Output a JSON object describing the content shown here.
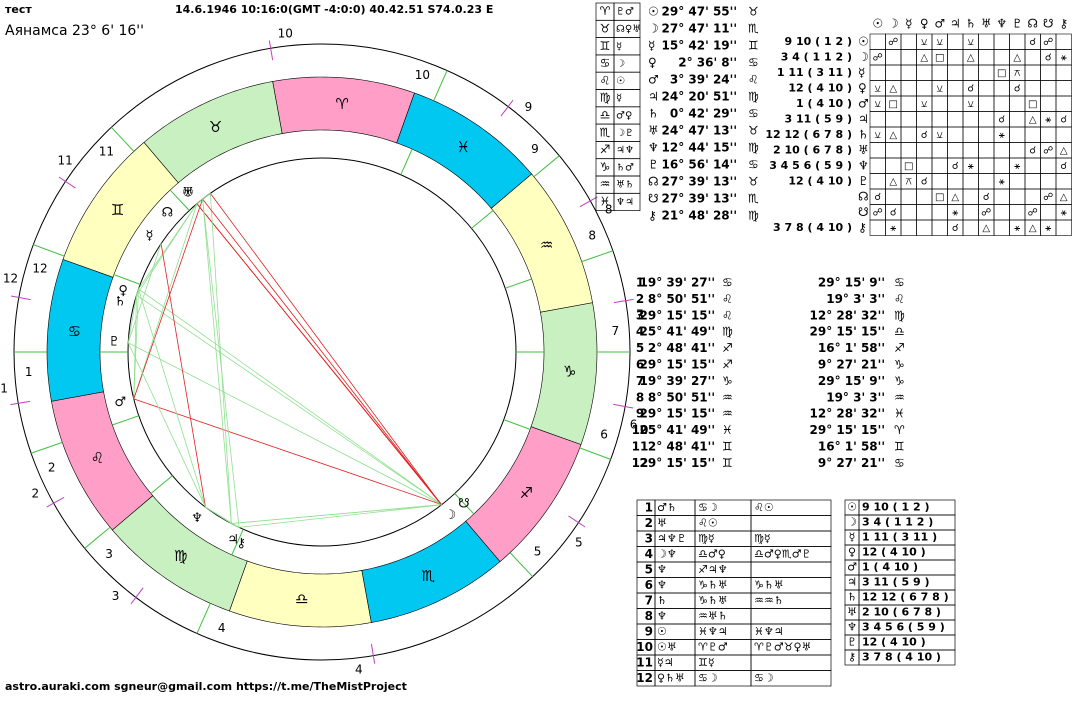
{
  "header": {
    "title": "тест",
    "info": "14.6.1946 10:16:0(GMT -4:0:0)  40.42.51 S74.0.23 E",
    "ayanamsa": "Аянамса 23°  6' 16''"
  },
  "wheel": {
    "signs": [
      "♈",
      "♉",
      "♊",
      "♋",
      "♌",
      "♍",
      "♎",
      "♏",
      "♐",
      "♑",
      "♒",
      "♓"
    ]
  },
  "rulers": [
    {
      "sign": "♈",
      "planets": "♇♂"
    },
    {
      "sign": "♉",
      "planets": "☊♀♅"
    },
    {
      "sign": "♊",
      "planets": "☿"
    },
    {
      "sign": "♋",
      "planets": "☽"
    },
    {
      "sign": "♌",
      "planets": "☉"
    },
    {
      "sign": "♍",
      "planets": "☿"
    },
    {
      "sign": "♎",
      "planets": "♂♀"
    },
    {
      "sign": "♏",
      "planets": "☽♇"
    },
    {
      "sign": "♐",
      "planets": "♃♆"
    },
    {
      "sign": "♑",
      "planets": "♄♂"
    },
    {
      "sign": "♒",
      "planets": "♅♄"
    },
    {
      "sign": "♓",
      "planets": "♆♃"
    }
  ],
  "planets": [
    {
      "glyph": "☉",
      "pos": "29° 47' 55''",
      "sign": "♉",
      "houses": "9 10 ( 1 2 )"
    },
    {
      "glyph": "☽",
      "pos": "27° 47' 11''",
      "sign": "♏",
      "houses": "3 4 ( 1 1 2 )"
    },
    {
      "glyph": "☿",
      "pos": "15° 42' 19''",
      "sign": "♊",
      "houses": "1 11 ( 3 11 )"
    },
    {
      "glyph": "♀",
      "pos": "2° 36' 8''",
      "sign": "♋",
      "houses": "12 ( 4 10 )"
    },
    {
      "glyph": "♂",
      "pos": "3° 39' 24''",
      "sign": "♌",
      "houses": "1 ( 4 10 )"
    },
    {
      "glyph": "♃",
      "pos": "24° 20' 51''",
      "sign": "♍",
      "houses": "3 11 ( 5 9 )"
    },
    {
      "glyph": "♄",
      "pos": "0° 42' 29''",
      "sign": "♋",
      "houses": "12 12 ( 6 7 8 )"
    },
    {
      "glyph": "♅",
      "pos": "24° 47' 13''",
      "sign": "♉",
      "houses": "2 10 ( 6 7 8 )"
    },
    {
      "glyph": "♆",
      "pos": "12° 44' 15''",
      "sign": "♍",
      "houses": "3 4 5 6 ( 5 9 )"
    },
    {
      "glyph": "♇",
      "pos": "16° 56' 14''",
      "sign": "♋",
      "houses": "12 ( 4 10 )"
    },
    {
      "glyph": "☊",
      "pos": "27° 39' 13''",
      "sign": "♉",
      "houses": null
    },
    {
      "glyph": "☋",
      "pos": "27° 39' 13''",
      "sign": "♏",
      "houses": null
    },
    {
      "glyph": "⚷",
      "pos": "21° 48' 28''",
      "sign": "♍",
      "houses": "3 7 8 ( 4 10 )"
    }
  ],
  "aspects": [
    [
      null,
      "☍",
      null,
      "⚺",
      "⚺",
      null,
      "⚺",
      null,
      null,
      null,
      "☌",
      "☍",
      null
    ],
    [
      "☍",
      null,
      null,
      "△",
      "□",
      null,
      "△",
      null,
      null,
      "△",
      null,
      "☌",
      "⚹"
    ],
    [
      null,
      null,
      null,
      null,
      null,
      null,
      null,
      null,
      "□",
      "⚻",
      null,
      null,
      null
    ],
    [
      "⚺",
      "△",
      null,
      null,
      "⚺",
      null,
      "☌",
      null,
      null,
      "☌",
      null,
      null,
      null
    ],
    [
      "⚺",
      "□",
      null,
      "⚺",
      null,
      null,
      "⚺",
      null,
      null,
      null,
      "□",
      null,
      null
    ],
    [
      null,
      null,
      null,
      null,
      null,
      null,
      null,
      null,
      "☌",
      null,
      "△",
      "⚹",
      "☌"
    ],
    [
      "⚺",
      "△",
      null,
      "☌",
      "⚺",
      null,
      null,
      null,
      "⚹",
      null,
      null,
      null,
      null
    ],
    [
      null,
      null,
      null,
      null,
      null,
      null,
      null,
      null,
      null,
      null,
      "☌",
      "☍",
      "△"
    ],
    [
      null,
      null,
      "□",
      null,
      null,
      "☌",
      "⚹",
      null,
      null,
      "⚹",
      null,
      null,
      "☌"
    ],
    [
      null,
      "△",
      "⚻",
      "☌",
      null,
      null,
      null,
      null,
      "⚹",
      null,
      null,
      null,
      null
    ],
    [
      "☌",
      null,
      null,
      null,
      "□",
      "△",
      null,
      "☌",
      null,
      null,
      null,
      "☍",
      "△"
    ],
    [
      "☍",
      "☌",
      null,
      null,
      null,
      "⚹",
      null,
      "☍",
      null,
      null,
      "☍",
      null,
      "⚹"
    ],
    [
      null,
      "⚹",
      null,
      null,
      null,
      "☌",
      null,
      "△",
      null,
      "⚹",
      "△",
      "⚹",
      null
    ]
  ],
  "houses": [
    {
      "num": "1",
      "cusp": "19° 39' 27''",
      "sign": "♋",
      "cusp2": "29° 15' 9''",
      "sign2": "♋"
    },
    {
      "num": "2",
      "cusp": "8° 50' 51''",
      "sign": "♌",
      "cusp2": "19° 3' 3''",
      "sign2": "♌"
    },
    {
      "num": "3",
      "cusp": "29° 15' 15''",
      "sign": "♌",
      "cusp2": "12° 28' 32''",
      "sign2": "♍"
    },
    {
      "num": "4",
      "cusp": "25° 41' 49''",
      "sign": "♍",
      "cusp2": "29° 15' 15''",
      "sign2": "♎"
    },
    {
      "num": "5",
      "cusp": "2° 48' 41''",
      "sign": "♐",
      "cusp2": "16° 1' 58''",
      "sign2": "♐"
    },
    {
      "num": "6",
      "cusp": "29° 15' 15''",
      "sign": "♐",
      "cusp2": "9° 27' 21''",
      "sign2": "♑"
    },
    {
      "num": "7",
      "cusp": "19° 39' 27''",
      "sign": "♑",
      "cusp2": "29° 15' 9''",
      "sign2": "♑"
    },
    {
      "num": "8",
      "cusp": "8° 50' 51''",
      "sign": "♒",
      "cusp2": "19° 3' 3''",
      "sign2": "♒"
    },
    {
      "num": "9",
      "cusp": "29° 15' 15''",
      "sign": "♒",
      "cusp2": "12° 28' 32''",
      "sign2": "♓"
    },
    {
      "num": "10",
      "cusp": "25° 41' 49''",
      "sign": "♓",
      "cusp2": "29° 15' 15''",
      "sign2": "♈"
    },
    {
      "num": "11",
      "cusp": "2° 48' 41''",
      "sign": "♊",
      "cusp2": "16° 1' 58''",
      "sign2": "♊"
    },
    {
      "num": "12",
      "cusp": "29° 15' 15''",
      "sign": "♊",
      "cusp2": "9° 27' 21''",
      "sign2": "♋"
    }
  ],
  "house_occupants": [
    {
      "num": "1",
      "a": "♂♄",
      "b": "♋☽",
      "c": "♌☉"
    },
    {
      "num": "2",
      "a": "♅",
      "b": "♌☉",
      "c": null
    },
    {
      "num": "3",
      "a": "♃♆♇",
      "b": "♍☿",
      "c": "♍☿"
    },
    {
      "num": "4",
      "a": "☽♆",
      "b": "♎♂♀",
      "c": "♎♂♀♏♂♇"
    },
    {
      "num": "5",
      "a": "♆",
      "b": "♐♃♆",
      "c": null
    },
    {
      "num": "6",
      "a": "♆",
      "b": "♑♄♅",
      "c": "♑♄♅"
    },
    {
      "num": "7",
      "a": "♄",
      "b": "♑♄♅",
      "c": "♒♒♄"
    },
    {
      "num": "8",
      "a": "♆",
      "b": "♒♅♄",
      "c": null
    },
    {
      "num": "9",
      "a": "☉",
      "b": "♓♆♃",
      "c": "♓♆♃"
    },
    {
      "num": "10",
      "a": "☉♅",
      "b": "♈♇♂",
      "c": "♈♇♂♉♀♅"
    },
    {
      "num": "11",
      "a": "☿♃",
      "b": "♊☿",
      "c": null
    },
    {
      "num": "12",
      "a": "♀♄♅",
      "b": "♋☽",
      "c": "♋☽"
    }
  ],
  "footer": "astro.auraki.com sgneur@gmail.com  https://t.me/TheMistProject"
}
